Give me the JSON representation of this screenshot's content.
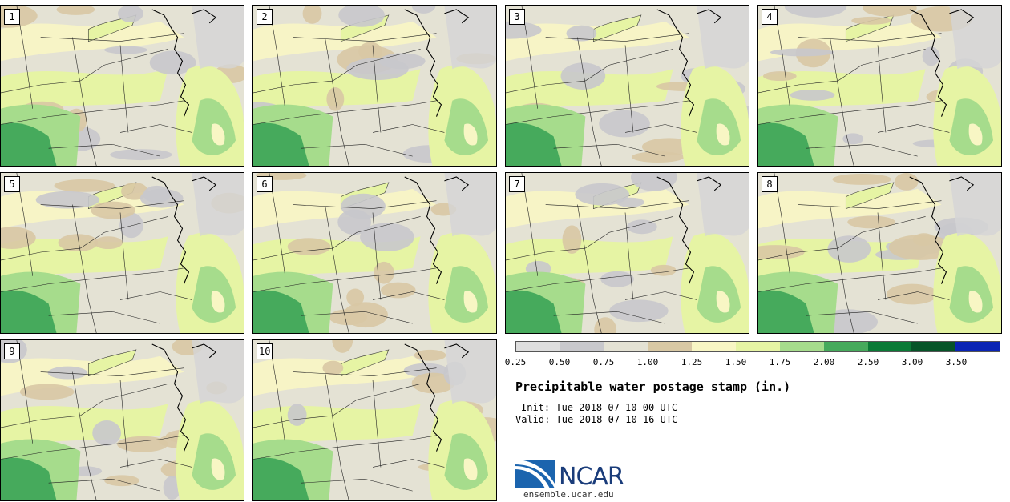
{
  "panels": [
    {
      "label": "1"
    },
    {
      "label": "2"
    },
    {
      "label": "3"
    },
    {
      "label": "4"
    },
    {
      "label": "5"
    },
    {
      "label": "6"
    },
    {
      "label": "7"
    },
    {
      "label": "8"
    },
    {
      "label": "9"
    },
    {
      "label": "10"
    }
  ],
  "legend": {
    "colors": [
      "#dedede",
      "#c8c8cc",
      "#e4e2d4",
      "#d8c8a4",
      "#f8f6c4",
      "#e6f4a4",
      "#a6dc8c",
      "#46aa5c",
      "#0a7a36",
      "#065428",
      "#0a24b4"
    ],
    "ticks": [
      "0.25",
      "0.50",
      "0.75",
      "1.00",
      "1.25",
      "1.50",
      "1.75",
      "2.00",
      "2.50",
      "3.00",
      "3.50"
    ]
  },
  "title": "Precipitable water postage stamp (in.)",
  "init": "Init: Tue 2018-07-10 00 UTC",
  "valid": "Valid: Tue 2018-07-10 16 UTC",
  "logo": {
    "text": "NCAR",
    "url": "ensemble.ucar.edu"
  }
}
